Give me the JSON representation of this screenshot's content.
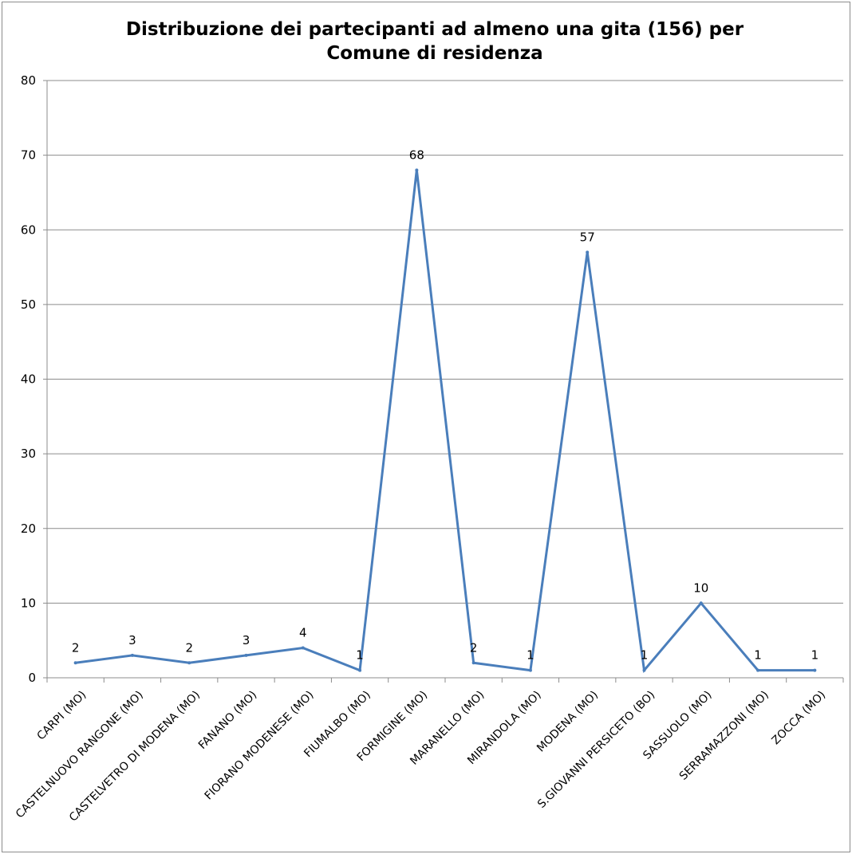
{
  "chart_data": {
    "type": "line",
    "title_lines": [
      "Distribuzione dei partecipanti ad almeno una gita (156) per",
      "Comune di residenza"
    ],
    "categories": [
      "CARPI (MO)",
      "CASTELNUOVO RANGONE (MO)",
      "CASTELVETRO DI MODENA (MO)",
      "FANANO (MO)",
      "FIORANO MODENESE (MO)",
      "FIUMALBO (MO)",
      "FORMIGINE (MO)",
      "MARANELLO (MO)",
      "MIRANDOLA (MO)",
      "MODENA (MO)",
      "S.GIOVANNI PERSICETO (BO)",
      "SASSUOLO (MO)",
      "SERRAMAZZONI (MO)",
      "ZOCCA (MO)"
    ],
    "values": [
      2,
      3,
      2,
      3,
      4,
      1,
      68,
      2,
      1,
      57,
      1,
      10,
      1,
      1
    ],
    "ylim": [
      0,
      80
    ],
    "yticks": [
      0,
      10,
      20,
      30,
      40,
      50,
      60,
      70,
      80
    ],
    "grid": true,
    "legend": "none",
    "line_color": "#4a7ebb",
    "grid_color": "#8c8c8c"
  }
}
